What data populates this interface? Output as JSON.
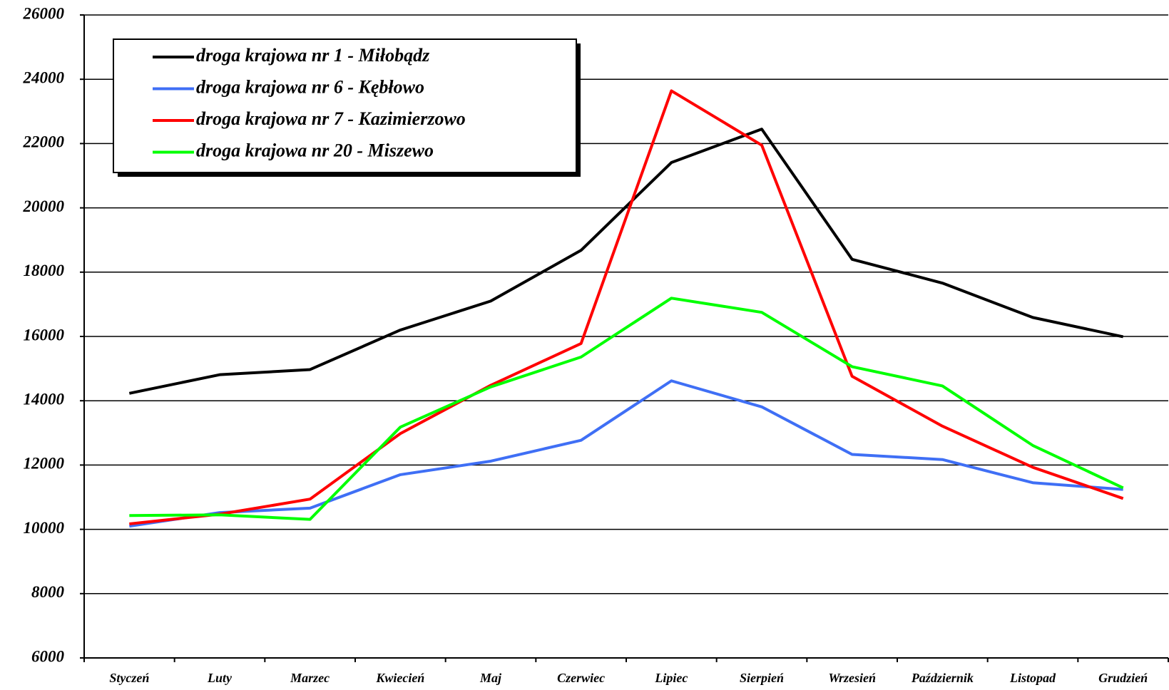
{
  "chart_data": {
    "type": "line",
    "categories": [
      "Styczeń",
      "Luty",
      "Marzec",
      "Kwiecień",
      "Maj",
      "Czerwiec",
      "Lipiec",
      "Sierpień",
      "Wrzesień",
      "Październik",
      "Listopad",
      "Grudzień"
    ],
    "series": [
      {
        "name": "droga krajowa nr 1 - Miłobądz",
        "color": "#000000",
        "values": [
          14230,
          14810,
          14970,
          16200,
          17100,
          18680,
          21410,
          22450,
          18400,
          17660,
          16590,
          15990
        ]
      },
      {
        "name": "droga krajowa nr 6 - Kębłowo",
        "color": "#3f6ff5",
        "values": [
          10100,
          10520,
          10660,
          11700,
          12120,
          12770,
          14620,
          13810,
          12330,
          12170,
          11450,
          11240
        ]
      },
      {
        "name": "droga krajowa nr 7 -  Kazimierzowo",
        "color": "#ff0000",
        "values": [
          10170,
          10470,
          10940,
          12980,
          14480,
          15780,
          23640,
          21950,
          14760,
          13210,
          11930,
          10960
        ]
      },
      {
        "name": "droga krajowa nr 20 - Miszewo",
        "color": "#00ff00",
        "values": [
          10430,
          10450,
          10310,
          13180,
          14430,
          15360,
          17190,
          16750,
          15060,
          14460,
          12610,
          11290
        ]
      }
    ],
    "ylim": [
      6000,
      26000
    ],
    "yticks": [
      6000,
      8000,
      10000,
      12000,
      14000,
      16000,
      18000,
      20000,
      22000,
      24000,
      26000
    ],
    "grid": true,
    "legend": "upper left"
  }
}
